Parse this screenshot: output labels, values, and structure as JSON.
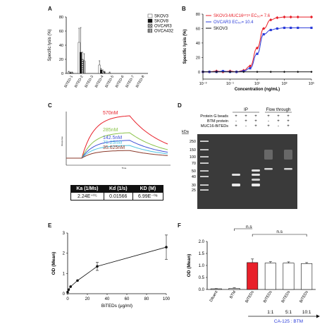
{
  "panel_letters": [
    "A",
    "B",
    "C",
    "D",
    "E",
    "F"
  ],
  "chart_data": [
    {
      "id": "A",
      "type": "bar",
      "ylabel": "Specific lysis (%)",
      "ylim": [
        0,
        80
      ],
      "yticks": [
        0,
        20,
        40,
        60,
        80
      ],
      "categories": [
        "BiTED-1",
        "BiTED-2",
        "BiTED-3",
        "BiTED-4",
        "BiTED-5",
        "BiTED-6",
        "BiTED-7",
        "BiTED-8"
      ],
      "legend_position": "top-right",
      "series": [
        {
          "name": "SKOV3",
          "pattern": "white",
          "values": [
            2,
            44,
            0,
            12,
            1,
            0,
            0,
            0
          ],
          "errors": [
            1,
            20,
            0,
            6,
            1,
            0,
            0,
            0
          ]
        },
        {
          "name": "SKOV8",
          "pattern": "black",
          "values": [
            1,
            30,
            0,
            5,
            0,
            0,
            0,
            0
          ],
          "errors": [
            1,
            35,
            0,
            2,
            0,
            0,
            0,
            0
          ]
        },
        {
          "name": "OVCAR3",
          "pattern": "hatched",
          "values": [
            1,
            20,
            0,
            3,
            0,
            0,
            0,
            0
          ],
          "errors": [
            1,
            10,
            0,
            2,
            0,
            0,
            0,
            0
          ]
        },
        {
          "name": "OVCA432",
          "pattern": "striped",
          "values": [
            0,
            18,
            0,
            2,
            0,
            0,
            0,
            0
          ],
          "errors": [
            0,
            10,
            0,
            1,
            0,
            0,
            0,
            0
          ]
        }
      ]
    },
    {
      "id": "B",
      "type": "line",
      "xlabel": "Concentration (ng/mL)",
      "ylabel": "Specific lysis (%)",
      "xscale": "log",
      "xlim": [
        0.001,
        100000
      ],
      "xticks": [
        0.001,
        0.1,
        10,
        1000,
        100000
      ],
      "xtick_labels": [
        "10⁻³",
        "10⁻¹",
        "10¹",
        "10³",
        "10⁵"
      ],
      "ylim": [
        -10,
        80
      ],
      "yticks": [
        0,
        20,
        40,
        60,
        80
      ],
      "legend_position": "top-left",
      "series": [
        {
          "name": "SKOV3-MUC16ᵉᶜᴛᵃ EC₅₀= 7.6",
          "color": "#e8202a",
          "marker": "diamond",
          "x": [
            0.001,
            0.003,
            0.01,
            0.03,
            0.1,
            0.3,
            1,
            3,
            10,
            30,
            100,
            300,
            1000,
            3000,
            10000,
            100000
          ],
          "y": [
            0,
            0,
            1,
            0,
            1,
            0,
            2,
            8,
            33,
            60,
            72,
            75,
            76,
            76,
            76,
            76
          ]
        },
        {
          "name": "OVCAR3 EC₅₀= 10.4",
          "color": "#2a3bd9",
          "marker": "square",
          "x": [
            0.001,
            0.003,
            0.01,
            0.03,
            0.1,
            0.3,
            1,
            3,
            10,
            30,
            100,
            300,
            1000,
            3000,
            10000,
            100000
          ],
          "y": [
            0,
            0,
            0,
            1,
            0,
            0,
            1,
            5,
            25,
            52,
            58,
            60,
            61,
            61,
            61,
            61
          ]
        },
        {
          "name": "SKOV3",
          "color": "#111111",
          "marker": "diamond-small",
          "x": [
            0.001,
            0.01,
            0.1,
            1,
            10,
            100,
            1000,
            10000,
            100000
          ],
          "y": [
            0,
            0,
            0,
            0,
            0,
            0,
            0,
            0,
            0
          ]
        }
      ]
    },
    {
      "id": "C",
      "type": "line",
      "xlabel": "Time",
      "ylabel": "Response",
      "series": [
        {
          "name": "570nM",
          "color": "#e8202a",
          "assoc": 1.0
        },
        {
          "name": "285nM",
          "color": "#8bc34a",
          "assoc": 0.6
        },
        {
          "name": "142.5nM",
          "color": "#3f51d6",
          "assoc": 0.42
        },
        {
          "name": "71.25nM",
          "color": "#4fc3e0",
          "assoc": 0.3
        },
        {
          "name": "35.625nM",
          "color": "#8b3a2b",
          "assoc": 0.18
        }
      ],
      "kinetics_table": {
        "headers": [
          "Ka (1/Ms)",
          "Kd (1/s)",
          "KD (M)"
        ],
        "values": [
          "2.24E⁺⁰⁵",
          "0.01566",
          "6.99E⁻⁰⁸"
        ]
      }
    },
    {
      "id": "E",
      "type": "line",
      "xlabel": "BiTEDs (μg/ml)",
      "ylabel": "OD (Mean)",
      "xlim": [
        0,
        100
      ],
      "ylim": [
        0,
        3
      ],
      "xticks": [
        0,
        20,
        40,
        60,
        80,
        100
      ],
      "yticks": [
        0,
        1,
        2,
        3
      ],
      "x": [
        0,
        1,
        3,
        10,
        30,
        100
      ],
      "y": [
        0.08,
        0.2,
        0.35,
        0.65,
        1.35,
        2.3
      ],
      "errors": [
        0.02,
        0.03,
        0.05,
        0.05,
        0.2,
        0.6
      ]
    },
    {
      "id": "F",
      "type": "bar",
      "ylabel": "OD (Mean)",
      "ylim": [
        0,
        2.0
      ],
      "yticks": [
        0.0,
        0.5,
        1.0,
        1.5,
        2.0
      ],
      "categories": [
        "Diluent",
        "BTM",
        "BiTEDs",
        "BiTEDs",
        "BiTEDs",
        "BiTEDs"
      ],
      "values": [
        0.03,
        0.05,
        1.12,
        1.1,
        1.1,
        1.08
      ],
      "errors": [
        0.01,
        0.02,
        0.15,
        0.06,
        0.05,
        0.04
      ],
      "bar_colors": [
        "#ffffff",
        "#ffffff",
        "#e8202a",
        "#ffffff",
        "#ffffff",
        "#ffffff"
      ],
      "ns_label": "n.s",
      "ratio_labels": [
        "1:1",
        "5:1",
        "10:1"
      ],
      "arrow_label": "CA-125 : BTM"
    }
  ],
  "gel": {
    "header_ip": "IP",
    "header_flow": "Flow through",
    "row_labels": [
      "Protein G beads",
      "BTM protein",
      "MUC16-BiTEDs"
    ],
    "row_signs": [
      [
        "+",
        "+",
        "+",
        "+",
        "+",
        "+"
      ],
      [
        "-",
        "+",
        "+",
        "-",
        "+",
        "+"
      ],
      [
        "+",
        "-",
        "+",
        "+",
        "-",
        "+"
      ]
    ],
    "kda_label": "kDa",
    "marker_labels": [
      "250",
      "150",
      "100",
      "70",
      "50",
      "40",
      "30",
      "25"
    ]
  }
}
